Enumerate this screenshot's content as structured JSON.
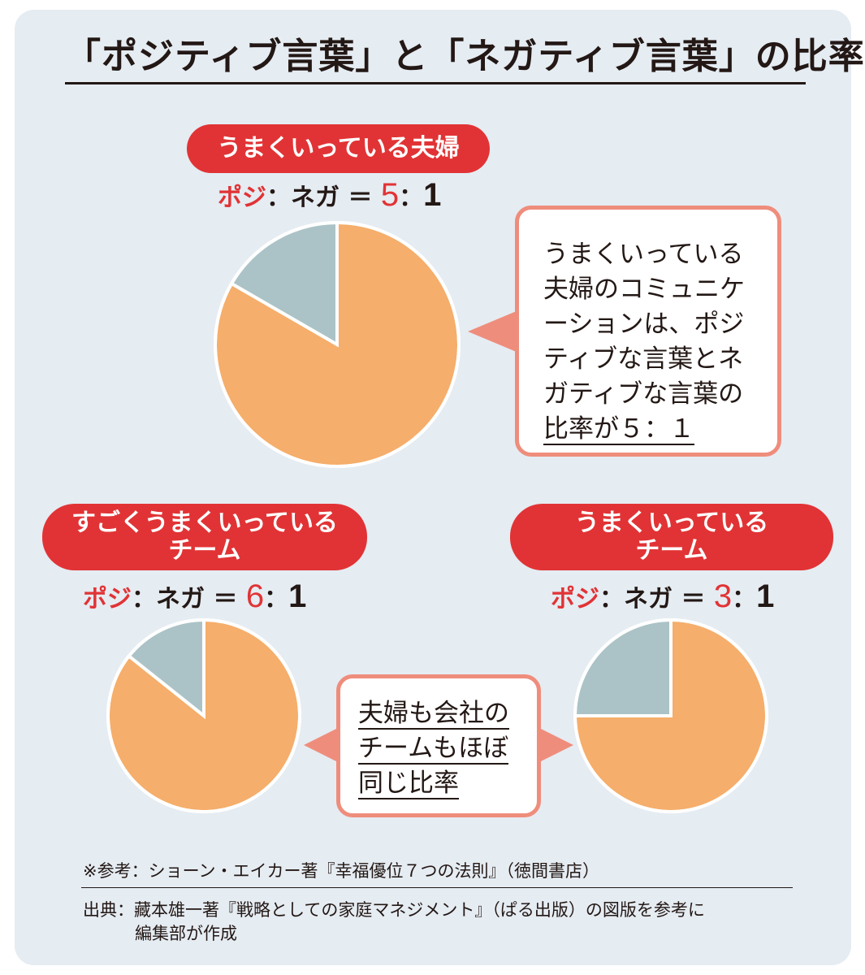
{
  "title": "「ポジティブ言葉」と「ネガティブ言葉」の比率",
  "colors": {
    "positive": "#f5ae6b",
    "negative": "#abc3c6",
    "accent": "#e13335",
    "callout_border": "#ef8d7c",
    "panel": "#e5ecf2"
  },
  "labels": {
    "posi": "ポジ",
    "sep": "：",
    "nega": "ネガ",
    "eq": "＝"
  },
  "chart_data": [
    {
      "type": "pie",
      "group": "うまくいっている夫婦",
      "categories": [
        "ポジ",
        "ネガ"
      ],
      "values": [
        5,
        1
      ],
      "ratio_pos": "5",
      "ratio_neg": "1"
    },
    {
      "type": "pie",
      "group": "すごくうまくいっている\nチーム",
      "categories": [
        "ポジ",
        "ネガ"
      ],
      "values": [
        6,
        1
      ],
      "ratio_pos": "6",
      "ratio_neg": "1"
    },
    {
      "type": "pie",
      "group": "うまくいっている\nチーム",
      "categories": [
        "ポジ",
        "ネガ"
      ],
      "values": [
        3,
        1
      ],
      "ratio_pos": "3",
      "ratio_neg": "1"
    }
  ],
  "callouts": {
    "couple": {
      "lines": [
        "うまくいっている",
        "夫婦のコミュニケ",
        "ーションは、ポジ",
        "ティブな言葉とネ",
        "ガティブな言葉の",
        "比率が５：１"
      ]
    },
    "team": {
      "lines": [
        "夫婦も会社の",
        "チームもほぼ",
        "同じ比率"
      ]
    }
  },
  "footer": {
    "reference": "※参考：ショーン・エイカー著『幸福優位７つの法則』（徳間書店）",
    "source_line1": "出典：藏本雄一著『戦略としての家庭マネジメント』（ぱる出版）の図版を参考に",
    "source_line2": "編集部が作成"
  }
}
